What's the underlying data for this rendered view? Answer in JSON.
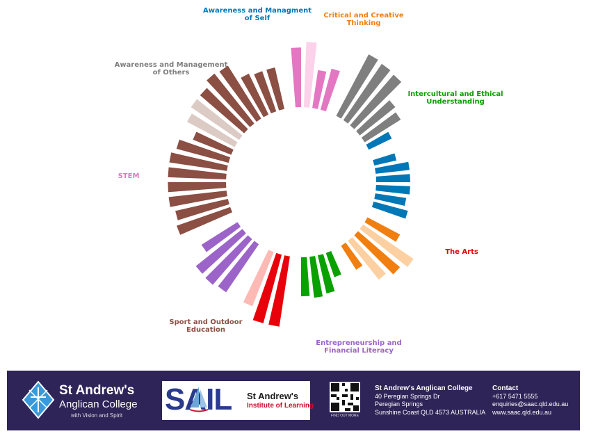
{
  "chart_data": {
    "type": "radial-bar",
    "title": "",
    "categories": [
      {
        "name": "Awareness and Managment of Self",
        "label_lines": [
          "Awareness and Managment",
          "of Self"
        ],
        "color": "#0077b6",
        "bars": [
          {
            "color": "#0077b6",
            "value": 0.32
          },
          {
            "color": "#0077b6",
            "value": 0.48
          },
          {
            "color": "#0077b6",
            "value": 0.48
          },
          {
            "color": "#0077b6",
            "value": 0.48
          },
          {
            "color": "#0077b6",
            "value": 0.44
          },
          {
            "color": "#0077b6",
            "value": 0.5
          }
        ]
      },
      {
        "name": "Critical and Creative Thinking",
        "label_lines": [
          "Critical and Creative",
          "Thinking"
        ],
        "color": "#f07f10",
        "bars": [
          {
            "color": "#f07f10",
            "value": 0.52
          },
          {
            "color": "#fdd0a2",
            "value": 0.86
          },
          {
            "color": "#f07f10",
            "value": 0.78
          },
          {
            "color": "#fdd0a2",
            "value": 0.7
          },
          {
            "color": "#f07f10",
            "value": 0.4
          }
        ]
      },
      {
        "name": "Intercultural and Ethical Understanding",
        "label_lines": [
          "Intercultural and Ethical",
          "Understanding"
        ],
        "color": "#0aa000",
        "bars": [
          {
            "color": "#0aa000",
            "value": 0.36
          },
          {
            "color": "#0aa000",
            "value": 0.55
          },
          {
            "color": "#0aa000",
            "value": 0.58
          },
          {
            "color": "#0aa000",
            "value": 0.55
          }
        ]
      },
      {
        "name": "The Arts",
        "label_lines": [
          "The Arts"
        ],
        "color": "#e8000a",
        "bars": [
          {
            "color": "#e8000a",
            "value": 1.0
          },
          {
            "color": "#e8000a",
            "value": 1.0
          },
          {
            "color": "#fdbab5",
            "value": 0.82
          }
        ]
      },
      {
        "name": "Entrepreneurship and Financial Literacy",
        "label_lines": [
          "Entrepreneurship and",
          "Financial Literacy"
        ],
        "color": "#9c64c8",
        "bars": [
          {
            "color": "#9c64c8",
            "value": 0.82
          },
          {
            "color": "#9c64c8",
            "value": 0.85
          },
          {
            "color": "#9c64c8",
            "value": 0.84
          },
          {
            "color": "#9c64c8",
            "value": 0.6
          }
        ]
      },
      {
        "name": "Sport and Outdoor Education",
        "label_lines": [
          "Sport and Outdoor",
          "Education"
        ],
        "color": "#8b4f44",
        "bars": [
          {
            "color": "#8b4f44",
            "value": 0.8
          },
          {
            "color": "#8b4f44",
            "value": 0.76
          },
          {
            "color": "#8b4f44",
            "value": 0.82
          },
          {
            "color": "#8b4f44",
            "value": 0.82
          },
          {
            "color": "#8b4f44",
            "value": 0.82
          },
          {
            "color": "#8b4f44",
            "value": 0.82
          },
          {
            "color": "#8b4f44",
            "value": 0.76
          },
          {
            "color": "#8b4f44",
            "value": 0.58
          },
          {
            "color": "#dccbc5",
            "value": 0.76
          },
          {
            "color": "#dccbc5",
            "value": 0.82
          },
          {
            "color": "#8b4f44",
            "value": 0.82
          },
          {
            "color": "#8b4f44",
            "value": 0.9
          },
          {
            "color": "#8b4f44",
            "value": 0.88
          },
          {
            "color": "#8b4f44",
            "value": 0.64
          },
          {
            "color": "#8b4f44",
            "value": 0.6
          },
          {
            "color": "#8b4f44",
            "value": 0.6
          }
        ]
      },
      {
        "name": "STEM",
        "label_lines": [
          "STEM"
        ],
        "color": "#e377c2",
        "bars": [
          {
            "color": "#e377c2",
            "value": 0.84
          },
          {
            "color": "#fbd2ea",
            "value": 0.92
          },
          {
            "color": "#e377c2",
            "value": 0.54
          },
          {
            "color": "#e377c2",
            "value": 0.6
          }
        ]
      },
      {
        "name": "Awareness and Management of Others",
        "label_lines": [
          "Awareness and Management",
          "of Others"
        ],
        "color": "#7f7f7f",
        "bars": [
          {
            "color": "#7f7f7f",
            "value": 0.98
          },
          {
            "color": "#7f7f7f",
            "value": 0.96
          },
          {
            "color": "#7f7f7f",
            "value": 0.94
          },
          {
            "color": "#7f7f7f",
            "value": 0.64
          },
          {
            "color": "#7f7f7f",
            "value": 0.6
          },
          {
            "color": "#0077b6",
            "value": 0.36
          }
        ]
      }
    ]
  },
  "footer": {
    "college_line1": "St Andrew's",
    "college_line2": "Anglican College",
    "college_motto": "with Vision and Spirit",
    "sail_word": "SAIL",
    "sail_sub1": "St Andrew's",
    "sail_sub2": "Institute of Learning",
    "qr_caption": "FIND OUT MORE",
    "address_title": "St Andrew's Anglican College",
    "address_line1": "40 Peregian Springs Dr",
    "address_line2": "Peregian Springs",
    "address_line3": "Sunshine Coast QLD 4573 AUSTRALIA",
    "contact_title": "Contact",
    "contact_phone": "+617 5471 5555",
    "contact_email": "enquiries@saac.qld.edu.au",
    "contact_web": "www.saac.qld.edu.au"
  }
}
